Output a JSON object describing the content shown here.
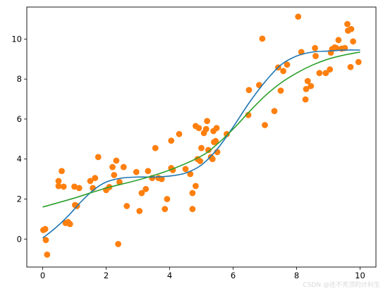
{
  "chart_data": {
    "type": "scatter",
    "xlim": [
      -0.5,
      10.5
    ],
    "ylim": [
      -1.4,
      11.6
    ],
    "x_ticks": [
      0,
      2,
      4,
      6,
      8,
      10
    ],
    "y_ticks": [
      0,
      2,
      4,
      6,
      8,
      10
    ],
    "x_tick_labels": [
      "0",
      "2",
      "4",
      "6",
      "8",
      "10"
    ],
    "y_tick_labels": [
      "0",
      "2",
      "4",
      "6",
      "8",
      "10"
    ],
    "grid": false,
    "legend": "none",
    "series": [
      {
        "kind": "scatter",
        "color": "#ff7f0e",
        "points": [
          [
            0.02,
            0.45
          ],
          [
            0.08,
            0.5
          ],
          [
            0.1,
            -0.05
          ],
          [
            0.14,
            -0.78
          ],
          [
            0.5,
            2.9
          ],
          [
            0.5,
            2.65
          ],
          [
            0.6,
            3.4
          ],
          [
            0.66,
            2.62
          ],
          [
            0.72,
            0.8
          ],
          [
            0.8,
            0.85
          ],
          [
            0.86,
            0.75
          ],
          [
            1.0,
            2.62
          ],
          [
            1.02,
            1.7
          ],
          [
            1.08,
            1.65
          ],
          [
            1.15,
            2.55
          ],
          [
            1.5,
            2.9
          ],
          [
            1.58,
            2.55
          ],
          [
            1.65,
            3.05
          ],
          [
            1.75,
            4.1
          ],
          [
            2.0,
            2.45
          ],
          [
            2.1,
            2.6
          ],
          [
            2.2,
            3.6
          ],
          [
            2.25,
            3.2
          ],
          [
            2.32,
            3.92
          ],
          [
            2.38,
            -0.25
          ],
          [
            2.42,
            2.85
          ],
          [
            2.55,
            3.6
          ],
          [
            2.65,
            1.65
          ],
          [
            2.95,
            3.35
          ],
          [
            3.05,
            1.4
          ],
          [
            3.12,
            2.3
          ],
          [
            3.25,
            2.5
          ],
          [
            3.32,
            3.4
          ],
          [
            3.45,
            3.05
          ],
          [
            3.55,
            4.55
          ],
          [
            3.65,
            3.05
          ],
          [
            3.75,
            3.0
          ],
          [
            3.85,
            1.5
          ],
          [
            3.92,
            2.0
          ],
          [
            4.05,
            3.55
          ],
          [
            4.05,
            4.92
          ],
          [
            4.1,
            3.45
          ],
          [
            4.3,
            5.25
          ],
          [
            4.5,
            3.5
          ],
          [
            4.65,
            3.25
          ],
          [
            4.72,
            1.5
          ],
          [
            4.72,
            2.3
          ],
          [
            4.82,
            2.65
          ],
          [
            4.82,
            5.65
          ],
          [
            4.88,
            4.0
          ],
          [
            4.92,
            5.55
          ],
          [
            4.96,
            3.9
          ],
          [
            5.0,
            4.55
          ],
          [
            5.08,
            5.3
          ],
          [
            5.15,
            5.5
          ],
          [
            5.18,
            5.9
          ],
          [
            5.22,
            4.45
          ],
          [
            5.3,
            4.1
          ],
          [
            5.35,
            4.0
          ],
          [
            5.38,
            5.4
          ],
          [
            5.4,
            4.85
          ],
          [
            5.45,
            4.9
          ],
          [
            5.48,
            5.55
          ],
          [
            5.5,
            4.35
          ],
          [
            5.8,
            5.25
          ],
          [
            6.48,
            6.2
          ],
          [
            6.5,
            7.45
          ],
          [
            6.82,
            7.7
          ],
          [
            6.92,
            10.02
          ],
          [
            7.0,
            5.7
          ],
          [
            7.3,
            6.4
          ],
          [
            7.42,
            8.58
          ],
          [
            7.5,
            7.42
          ],
          [
            7.58,
            8.4
          ],
          [
            7.7,
            8.72
          ],
          [
            8.05,
            11.12
          ],
          [
            8.15,
            9.35
          ],
          [
            8.28,
            6.98
          ],
          [
            8.3,
            7.5
          ],
          [
            8.35,
            7.9
          ],
          [
            8.45,
            7.65
          ],
          [
            8.58,
            9.55
          ],
          [
            8.6,
            9.15
          ],
          [
            8.72,
            8.3
          ],
          [
            8.92,
            8.3
          ],
          [
            9.05,
            8.48
          ],
          [
            9.08,
            9.32
          ],
          [
            9.12,
            9.5
          ],
          [
            9.2,
            9.58
          ],
          [
            9.25,
            9.55
          ],
          [
            9.32,
            9.95
          ],
          [
            9.42,
            9.52
          ],
          [
            9.52,
            9.55
          ],
          [
            9.6,
            10.75
          ],
          [
            9.62,
            10.42
          ],
          [
            9.7,
            8.6
          ],
          [
            9.72,
            10.5
          ],
          [
            9.78,
            9.88
          ],
          [
            9.95,
            8.85
          ]
        ]
      },
      {
        "kind": "line",
        "color": "#1f77b4",
        "points": [
          [
            0,
            0.05
          ],
          [
            0.4,
            0.55
          ],
          [
            0.8,
            1.15
          ],
          [
            1.2,
            1.85
          ],
          [
            1.6,
            2.45
          ],
          [
            2.0,
            2.85
          ],
          [
            2.5,
            3.05
          ],
          [
            3.0,
            3.1
          ],
          [
            3.5,
            3.1
          ],
          [
            4.0,
            3.15
          ],
          [
            4.5,
            3.3
          ],
          [
            5.0,
            3.7
          ],
          [
            5.5,
            4.5
          ],
          [
            6.0,
            5.6
          ],
          [
            6.5,
            6.8
          ],
          [
            7.0,
            7.85
          ],
          [
            7.5,
            8.7
          ],
          [
            8.0,
            9.15
          ],
          [
            8.5,
            9.35
          ],
          [
            9.0,
            9.4
          ],
          [
            9.5,
            9.45
          ],
          [
            10.0,
            9.45
          ]
        ]
      },
      {
        "kind": "line",
        "color": "#2ca02c",
        "points": [
          [
            0,
            1.6
          ],
          [
            1,
            2.05
          ],
          [
            2,
            2.55
          ],
          [
            3,
            2.95
          ],
          [
            4,
            3.45
          ],
          [
            5,
            4.15
          ],
          [
            5.5,
            4.75
          ],
          [
            6,
            5.5
          ],
          [
            6.5,
            6.35
          ],
          [
            7,
            7.15
          ],
          [
            7.5,
            7.8
          ],
          [
            8,
            8.3
          ],
          [
            8.5,
            8.7
          ],
          [
            9,
            9.0
          ],
          [
            9.5,
            9.2
          ],
          [
            10,
            9.35
          ]
        ]
      }
    ]
  },
  "watermark": "CSDN @还不秃顶的计科生"
}
